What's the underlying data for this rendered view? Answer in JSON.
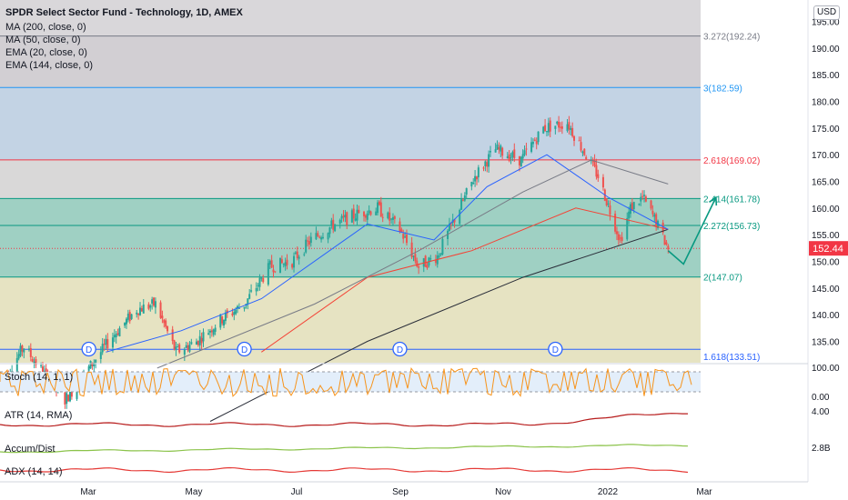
{
  "header": {
    "title": "SPDR Select Sector Fund - Technology, 1D, AMEX",
    "indicators": [
      "MA (200, close, 0)",
      "MA (50, close, 0)",
      "EMA (20, close, 0)",
      "EMA (144, close, 0)"
    ]
  },
  "currency": "USD",
  "last_price": {
    "label": "152.44",
    "value": 152.44,
    "color": "#f23645"
  },
  "colors": {
    "up": "#26a69a",
    "down": "#ef5350",
    "ma200": "#2a2e39",
    "ma50": "#f44336",
    "ema20": "#2962ff",
    "ema144": "#787b86",
    "projection": "#089981"
  },
  "chart_data": {
    "type": "candlestick",
    "ylim": [
      131,
      199
    ],
    "y_ticks": [
      135,
      140,
      145,
      150,
      155,
      160,
      165,
      170,
      175,
      180,
      185,
      190,
      195
    ],
    "x_ticks": [
      "Mar",
      "May",
      "Jul",
      "Sep",
      "Nov",
      "2022",
      "Mar"
    ],
    "date_range": [
      "2021-01-29",
      "2022-03-15"
    ],
    "fib_levels": [
      {
        "ratio": 1.618,
        "value": 133.51,
        "label": "1.618(133.51)",
        "color": "#2962ff",
        "fill": "#e6e3c2"
      },
      {
        "ratio": 2,
        "value": 147.07,
        "label": "2(147.07)",
        "color": "#089981",
        "fill": "#9fd0c3"
      },
      {
        "ratio": 2.272,
        "value": 156.73,
        "label": "2.272(156.73)",
        "color": "#089981",
        "fill": "#9fd0c3"
      },
      {
        "ratio": 2.414,
        "value": 161.78,
        "label": "2.414(161.78)",
        "color": "#089981",
        "fill": "#d9d8d8"
      },
      {
        "ratio": 2.618,
        "value": 169.02,
        "label": "2.618(169.02)",
        "color": "#f23645",
        "fill": "#c3d3e4"
      },
      {
        "ratio": 3,
        "value": 182.59,
        "label": "3(182.59)",
        "color": "#2196f3",
        "fill": "#d2cfd3"
      },
      {
        "ratio": 3.272,
        "value": 192.24,
        "label": "3.272(192.24)",
        "color": "#787b86",
        "fill": "#dcdadd"
      }
    ],
    "price_path": [
      [
        "2021-01-29",
        127
      ],
      [
        "2021-02-12",
        134
      ],
      [
        "2021-02-26",
        128
      ],
      [
        "2021-03-08",
        124
      ],
      [
        "2021-03-22",
        130
      ],
      [
        "2021-04-05",
        136
      ],
      [
        "2021-04-19",
        141
      ],
      [
        "2021-04-30",
        142
      ],
      [
        "2021-05-12",
        133
      ],
      [
        "2021-05-24",
        135
      ],
      [
        "2021-06-07",
        139
      ],
      [
        "2021-06-21",
        142
      ],
      [
        "2021-07-06",
        149
      ],
      [
        "2021-07-19",
        150
      ],
      [
        "2021-07-30",
        154
      ],
      [
        "2021-08-13",
        157
      ],
      [
        "2021-08-27",
        159
      ],
      [
        "2021-09-07",
        160
      ],
      [
        "2021-09-20",
        156
      ],
      [
        "2021-10-01",
        149
      ],
      [
        "2021-10-12",
        151
      ],
      [
        "2021-10-22",
        158
      ],
      [
        "2021-11-03",
        166
      ],
      [
        "2021-11-15",
        171
      ],
      [
        "2021-11-30",
        169
      ],
      [
        "2021-12-13",
        175
      ],
      [
        "2021-12-27",
        176
      ],
      [
        "2022-01-05",
        171
      ],
      [
        "2022-01-14",
        166
      ],
      [
        "2022-01-27",
        154
      ],
      [
        "2022-02-02",
        160
      ],
      [
        "2022-02-09",
        162
      ],
      [
        "2022-02-16",
        158
      ],
      [
        "2022-02-24",
        152.44
      ]
    ],
    "moving_averages": [
      {
        "name": "MA (200, close, 0)",
        "points": [
          [
            "2021-06-01",
            120
          ],
          [
            "2021-09-01",
            135
          ],
          [
            "2021-12-01",
            147
          ],
          [
            "2022-02-24",
            156
          ]
        ]
      },
      {
        "name": "MA (50, close, 0)",
        "points": [
          [
            "2021-07-01",
            133
          ],
          [
            "2021-09-01",
            147
          ],
          [
            "2021-11-01",
            152
          ],
          [
            "2022-01-01",
            160
          ],
          [
            "2022-02-24",
            156
          ]
        ]
      },
      {
        "name": "EMA (20, close, 0)",
        "points": [
          [
            "2021-04-01",
            133
          ],
          [
            "2021-05-15",
            137
          ],
          [
            "2021-07-01",
            143
          ],
          [
            "2021-09-01",
            157
          ],
          [
            "2021-10-10",
            154
          ],
          [
            "2021-11-10",
            164
          ],
          [
            "2021-12-15",
            170
          ],
          [
            "2022-01-20",
            162
          ],
          [
            "2022-02-24",
            156
          ]
        ]
      },
      {
        "name": "EMA (144, close, 0)",
        "points": [
          [
            "2021-05-01",
            130
          ],
          [
            "2021-08-01",
            142
          ],
          [
            "2021-10-01",
            152
          ],
          [
            "2021-12-01",
            163
          ],
          [
            "2022-01-10",
            169
          ],
          [
            "2022-02-24",
            164.5
          ]
        ]
      }
    ],
    "projection": [
      [
        "2022-02-24",
        152
      ],
      [
        "2022-03-05",
        149.5
      ],
      [
        "2022-03-24",
        162
      ]
    ],
    "dividend_markers": [
      "2021-03-22",
      "2021-06-21",
      "2021-09-20",
      "2021-12-20"
    ],
    "dividend_label": "D",
    "sub_panels": [
      {
        "name": "Stoch (14, 1, 1)",
        "axis_labels": [
          "100.00",
          "0.00"
        ]
      },
      {
        "name": "ATR (14, RMA)",
        "axis_labels": [
          "4.00"
        ]
      },
      {
        "name": "Accum/Dist",
        "axis_labels": [
          "2.8B"
        ]
      },
      {
        "name": "ADX (14, 14)",
        "axis_labels": []
      }
    ]
  }
}
